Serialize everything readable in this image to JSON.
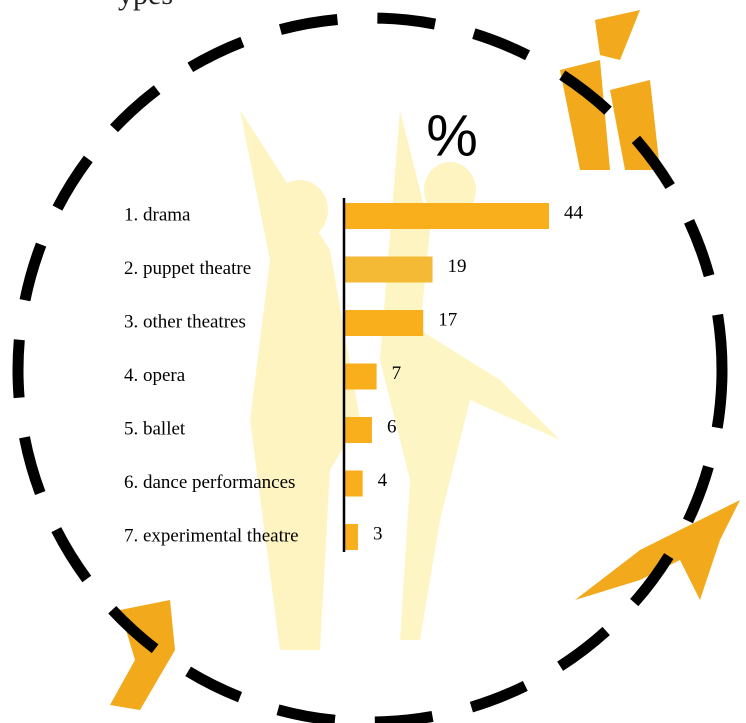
{
  "heading": "ypes",
  "chart_data": {
    "type": "bar",
    "orientation": "horizontal",
    "title": "%",
    "categories": [
      "1. drama",
      "2. puppet theatre",
      "3. other theatres",
      "4. opera",
      "5. ballet",
      "6. dance performances",
      "7. experimental theatre"
    ],
    "values": [
      44,
      19,
      17,
      7,
      6,
      4,
      3
    ],
    "colors": [
      "#f9ae1b",
      "#f5ba35",
      "#f9ae1b",
      "#f9ae1b",
      "#f9ae1b",
      "#f9ae1b",
      "#f9ae1b"
    ]
  }
}
